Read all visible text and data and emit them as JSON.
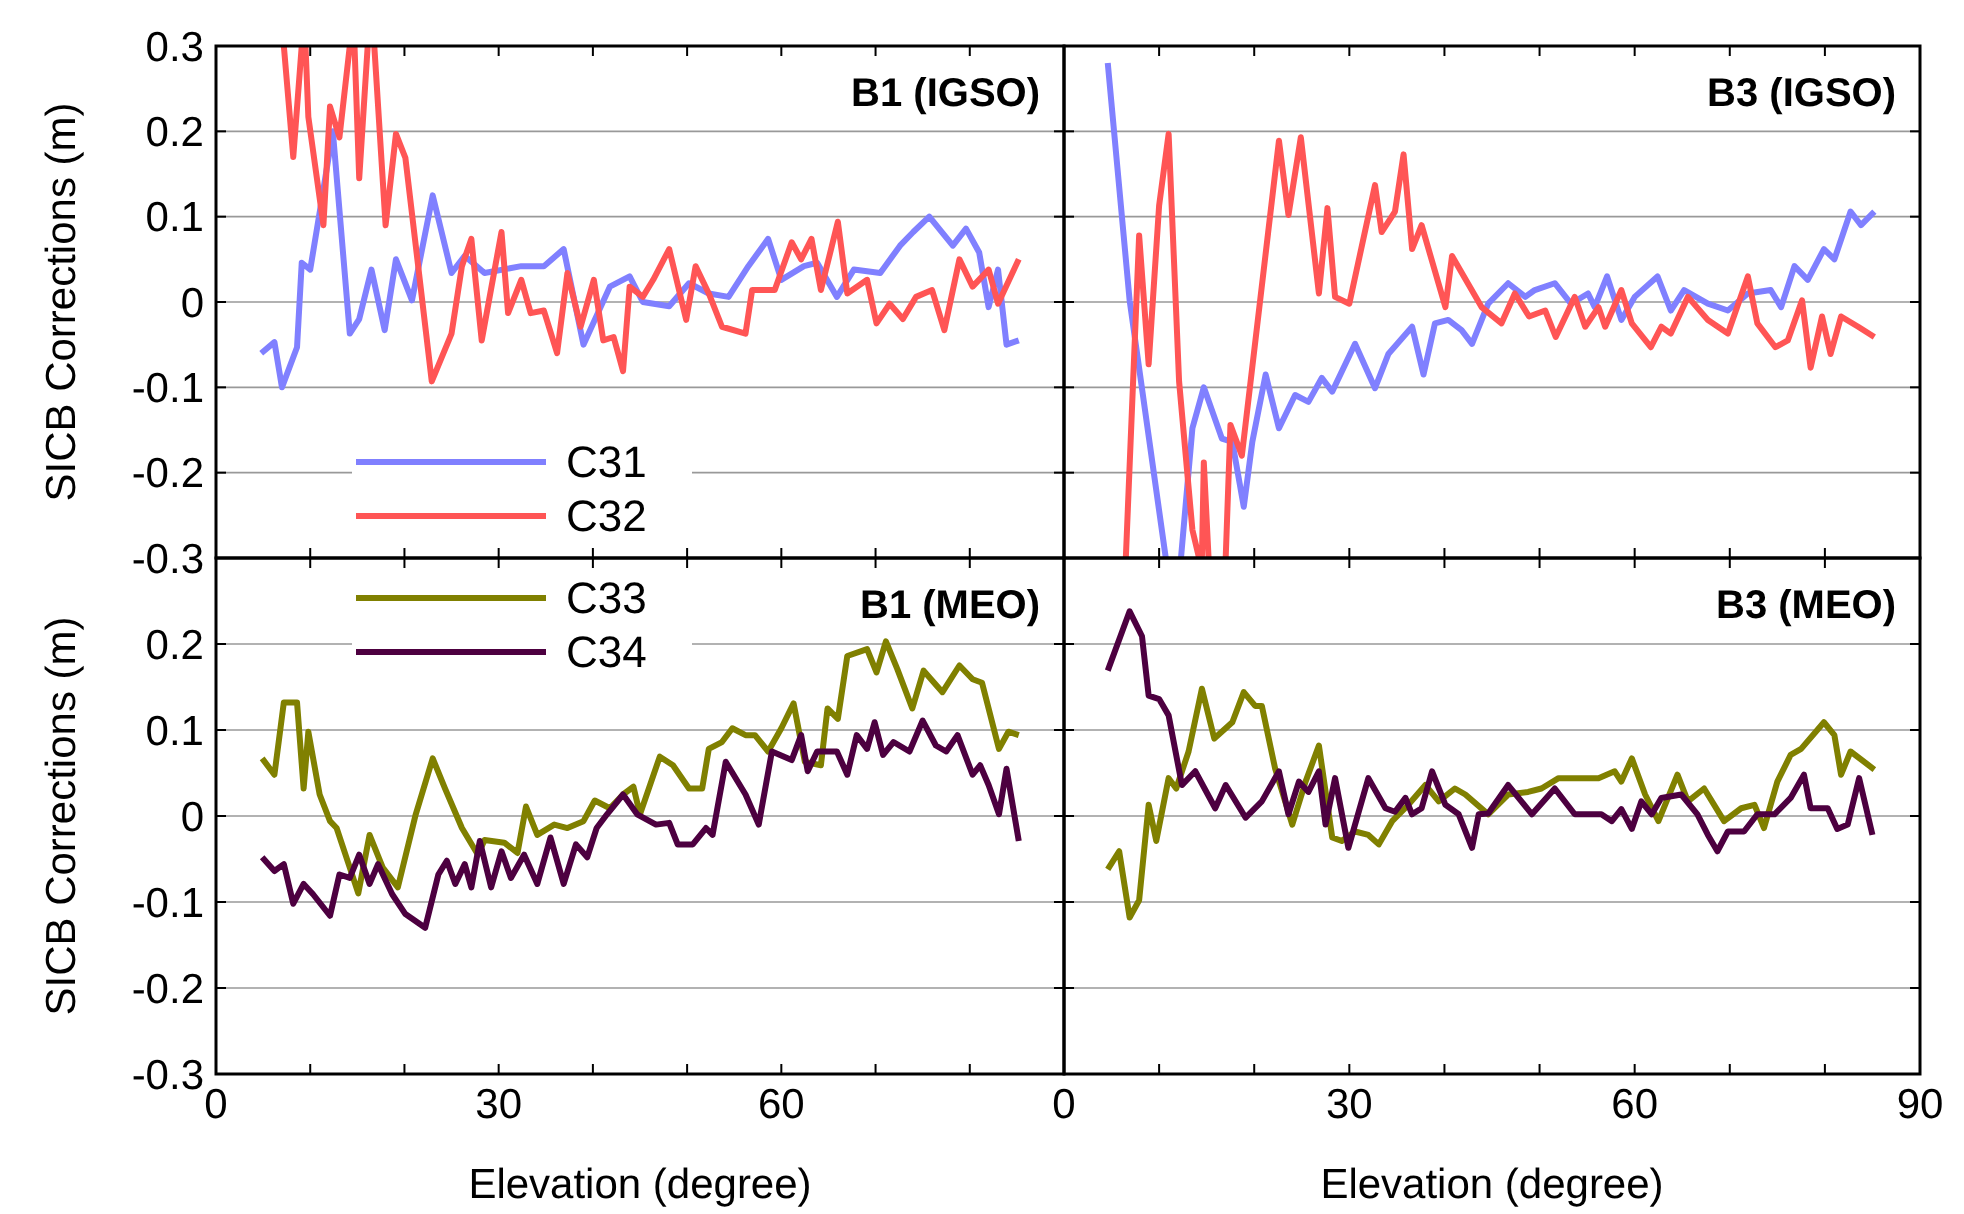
{
  "chart_data": [
    {
      "type": "line",
      "title": "B1 (IGSO)",
      "ylabel": "SICB Corrections (m)",
      "xlim": [
        0,
        90
      ],
      "ylim": [
        -0.3,
        0.3
      ],
      "xticks": [
        0,
        {
          "value": 10,
          "label": null
        },
        {
          "value": 20,
          "label": null
        },
        30,
        {
          "value": 40,
          "label": null
        },
        {
          "value": 50,
          "label": null
        },
        60,
        {
          "value": 70,
          "label": null
        },
        {
          "value": 80,
          "label": null
        },
        {
          "value": 90,
          "label": null
        }
      ],
      "yticks": [
        0.3,
        0.2,
        0.1,
        0,
        -0.1,
        -0.2,
        -0.3
      ],
      "grid": "y",
      "legend": "bottom left",
      "tick_labels": "y",
      "marker": "none",
      "line_style": "solid",
      "series": [
        {
          "name": "C31",
          "color": "#8080ff",
          "x": [
            4.8,
            6.2,
            7.0,
            8.6,
            9.1,
            10,
            11,
            12.4,
            14.2,
            15.2,
            16.5,
            17.9,
            19.1,
            20.8,
            23,
            25,
            26.4,
            28.5,
            32.4,
            34.8,
            36.9,
            39,
            41.8,
            43.9,
            45.3,
            48.1,
            50.2,
            52.3,
            54.4,
            56.5,
            58.6,
            60,
            62.4,
            63.8,
            65.9,
            67.7,
            70.5,
            72.6,
            74,
            75.7,
            78.2,
            79.6,
            81,
            82,
            83,
            83.9,
            85.2
          ],
          "values": [
            -0.06,
            -0.047,
            -0.1,
            -0.053,
            0.046,
            0.038,
            0.105,
            0.2,
            -0.037,
            -0.02,
            0.038,
            -0.033,
            0.05,
            0.002,
            0.125,
            0.034,
            0.054,
            0.034,
            0.042,
            0.042,
            0.062,
            -0.05,
            0.018,
            0.03,
            0,
            -0.005,
            0.022,
            0.01,
            0.006,
            0.042,
            0.074,
            0.026,
            0.042,
            0.046,
            0.006,
            0.038,
            0.034,
            0.066,
            0.082,
            0.1,
            0.066,
            0.086,
            0.058,
            -0.006,
            0.038,
            -0.05,
            -0.045
          ]
        },
        {
          "name": "C32",
          "color": "#ff5555",
          "x": [
            7.2,
            8.2,
            9.1,
            9.3,
            9.5,
            9.8,
            11.4,
            12.1,
            13.1,
            14.2,
            14.5,
            14.7,
            15.2,
            16.1,
            16.5,
            16.8,
            18,
            19.1,
            20.1,
            22.9,
            25,
            26.1,
            27.1,
            28.2,
            30.3,
            31,
            32.4,
            33.4,
            34.8,
            36.2,
            37.3,
            38.7,
            40.1,
            41.1,
            42.2,
            43.2,
            43.9,
            45.3,
            46.4,
            48.1,
            49.9,
            50.9,
            52.3,
            53.7,
            56.2,
            56.9,
            59.3,
            61.1,
            62.1,
            63.2,
            64.2,
            66,
            67,
            69.1,
            70.1,
            71.5,
            72.9,
            74.3,
            76,
            77.3,
            78.9,
            80.3,
            82,
            83,
            85.2
          ],
          "values": [
            0.3,
            0.17,
            0.3,
            null,
            0.3,
            0.217,
            0.09,
            0.229,
            0.193,
            0.3,
            null,
            0.3,
            0.145,
            0.3,
            null,
            0.3,
            0.09,
            0.197,
            0.169,
            -0.093,
            -0.037,
            0.042,
            0.074,
            -0.045,
            0.082,
            -0.013,
            0.026,
            -0.013,
            -0.01,
            -0.06,
            0.034,
            -0.029,
            0.026,
            -0.045,
            -0.041,
            -0.081,
            0.018,
            0.006,
            0.026,
            0.062,
            -0.021,
            0.042,
            0.01,
            -0.029,
            -0.037,
            0.014,
            0.014,
            0.07,
            0.05,
            0.074,
            0.014,
            0.094,
            0.01,
            0.026,
            -0.025,
            -0.002,
            -0.02,
            0.006,
            0.014,
            -0.033,
            0.05,
            0.018,
            0.038,
            -0.002,
            0.05
          ]
        }
      ]
    },
    {
      "type": "line",
      "title": "B3 (IGSO)",
      "xlim": [
        0,
        90
      ],
      "ylim": [
        -0.3,
        0.3
      ],
      "xticks": [
        0,
        {
          "value": 10,
          "label": null
        },
        {
          "value": 20,
          "label": null
        },
        30,
        {
          "value": 40,
          "label": null
        },
        {
          "value": 50,
          "label": null
        },
        60,
        {
          "value": 70,
          "label": null
        },
        {
          "value": 80,
          "label": null
        },
        90
      ],
      "yticks": [
        0.3,
        0.2,
        0.1,
        0,
        -0.1,
        -0.2,
        -0.3
      ],
      "grid": "y",
      "legend": false,
      "tick_labels": false,
      "marker": "none",
      "line_style": "solid",
      "series": [
        {
          "color": "#8080ff",
          "x": [
            4.6,
            6.9,
            10.7,
            11.5,
            12.3,
            13.5,
            14.7,
            16.6,
            17.7,
            18.9,
            19.8,
            21.2,
            22.6,
            24.3,
            25.7,
            27.1,
            28.2,
            30.6,
            32.7,
            34.1,
            36.6,
            37.8,
            39,
            40.4,
            41.8,
            42.9,
            44.6,
            46.7,
            48.5,
            49.5,
            51.6,
            53.3,
            55.1,
            55.8,
            57.1,
            58.6,
            60,
            62.4,
            63.8,
            65.2,
            67.7,
            69.8,
            71.9,
            74.3,
            75.4,
            76.8,
            78.2,
            79.9,
            81,
            82.7,
            83.8,
            85.2
          ],
          "values": [
            0.28,
            0.002,
            -0.3,
            null,
            -0.3,
            -0.148,
            -0.1,
            -0.16,
            -0.164,
            -0.24,
            -0.164,
            -0.085,
            -0.148,
            -0.109,
            -0.117,
            -0.089,
            -0.105,
            -0.049,
            -0.101,
            -0.061,
            -0.029,
            -0.085,
            -0.025,
            -0.021,
            -0.033,
            -0.049,
            -0.002,
            0.022,
            0.006,
            0.014,
            0.022,
            -0.002,
            0.01,
            -0.006,
            0.03,
            -0.021,
            0.006,
            0.03,
            -0.01,
            0.014,
            -0.002,
            -0.01,
            0.01,
            0.014,
            -0.006,
            0.042,
            0.026,
            0.062,
            0.05,
            0.106,
            0.09,
            0.106
          ]
        },
        {
          "color": "#ff5555",
          "x": [
            6.5,
            7.9,
            8.9,
            10,
            11,
            12.1,
            13.5,
            14.2,
            14.4,
            14.5,
            14.7,
            15.2,
            16,
            17,
            17.5,
            18.7,
            22.6,
            23.6,
            24.9,
            26.8,
            27.7,
            28.5,
            30,
            32.7,
            33.4,
            34.8,
            35.7,
            36.6,
            37.6,
            40.1,
            40.8,
            43.9,
            46,
            47.4,
            48.9,
            50.6,
            51.7,
            53.7,
            54.8,
            56.2,
            56.9,
            58.6,
            59.7,
            61.7,
            62.8,
            63.8,
            65.6,
            67.7,
            69.8,
            71.9,
            72.9,
            74.8,
            76.1,
            77.6,
            78.5,
            79.7,
            80.6,
            81.7,
            83.5,
            85.2
          ],
          "values": [
            -0.3,
            0.078,
            -0.073,
            0.113,
            0.197,
            -0.093,
            -0.267,
            -0.3,
            null,
            -0.3,
            -0.188,
            -0.3,
            null,
            -0.3,
            -0.144,
            -0.18,
            0.189,
            0.102,
            0.193,
            0.01,
            0.11,
            0.006,
            -0.002,
            0.137,
            0.082,
            0.106,
            0.173,
            0.062,
            0.09,
            -0.006,
            0.054,
            -0.006,
            -0.025,
            0.01,
            -0.017,
            -0.01,
            -0.041,
            0.006,
            -0.029,
            -0.006,
            -0.029,
            0.014,
            -0.025,
            -0.053,
            -0.029,
            -0.037,
            0.006,
            -0.021,
            -0.037,
            0.03,
            -0.025,
            -0.053,
            -0.045,
            0.002,
            -0.077,
            -0.017,
            -0.061,
            -0.017,
            -0.029,
            -0.041
          ]
        }
      ]
    },
    {
      "type": "line",
      "title": "B1 (MEO)",
      "ylabel": "SICB Corrections (m)",
      "xlabel": "Elevation (degree)",
      "xlim": [
        0,
        90
      ],
      "ylim": [
        -0.3,
        0.3
      ],
      "xticks": [
        0,
        {
          "value": 10,
          "label": null
        },
        {
          "value": 20,
          "label": null
        },
        30,
        {
          "value": 40,
          "label": null
        },
        {
          "value": 50,
          "label": null
        },
        60,
        {
          "value": 70,
          "label": null
        },
        {
          "value": 80,
          "label": null
        },
        {
          "value": 90,
          "label": null
        }
      ],
      "yticks": [
        {
          "value": 0.3,
          "label": null
        },
        0.2,
        0.1,
        0,
        -0.1,
        -0.2,
        -0.3
      ],
      "grid": "y",
      "legend": "top left",
      "marker": "none",
      "line_style": "solid",
      "series": [
        {
          "name": "C33",
          "color": "#808000",
          "x": [
            4.9,
            6.2,
            7.2,
            8.6,
            9.3,
            9.8,
            11,
            12.1,
            12.8,
            14.2,
            15.1,
            16.3,
            17.7,
            19.3,
            21.2,
            23,
            24.3,
            26.1,
            27.8,
            28.5,
            30.6,
            32,
            32.9,
            34.1,
            35.9,
            37.3,
            39,
            40.2,
            41.8,
            43.2,
            44.3,
            45,
            47.1,
            48.5,
            50.2,
            51.6,
            52.3,
            53.7,
            54.8,
            56.2,
            57.2,
            58.6,
            60,
            61.3,
            62.5,
            64.2,
            64.9,
            66,
            67,
            69.1,
            70.1,
            71.1,
            72.3,
            73.9,
            75.1,
            77.1,
            78.9,
            80.3,
            81.3,
            83.1,
            84.1,
            85.2
          ],
          "values": [
            0.067,
            0.048,
            0.132,
            0.132,
            0.032,
            0.098,
            0.025,
            -0.006,
            -0.014,
            -0.06,
            -0.09,
            -0.022,
            -0.06,
            -0.083,
            0.002,
            0.067,
            0.032,
            -0.014,
            -0.045,
            -0.028,
            -0.031,
            -0.043,
            0.011,
            -0.022,
            -0.01,
            -0.014,
            -0.006,
            0.018,
            0.009,
            0.025,
            0.034,
            0.002,
            0.069,
            0.059,
            0.032,
            0.032,
            0.078,
            0.086,
            0.102,
            0.094,
            0.094,
            0.075,
            0.102,
            0.131,
            0.063,
            0.059,
            0.125,
            0.113,
            0.186,
            0.194,
            0.167,
            0.203,
            0.171,
            0.125,
            0.169,
            0.144,
            0.175,
            0.159,
            0.155,
            0.078,
            0.098,
            0.094
          ]
        },
        {
          "name": "C34",
          "color": "#4d0040",
          "x": [
            4.9,
            6.2,
            7.2,
            8.2,
            9.3,
            10.3,
            12.1,
            13.1,
            14.2,
            15.2,
            16.3,
            17.2,
            18.7,
            20.1,
            22.2,
            23.6,
            24.5,
            25.4,
            26.4,
            27.1,
            28,
            29.2,
            30.3,
            31.3,
            32.7,
            34.1,
            35.5,
            36.9,
            38.2,
            39.4,
            40.4,
            41.5,
            43.2,
            44.7,
            46.7,
            48.1,
            49,
            50.6,
            52,
            52.7,
            54.1,
            56.2,
            57.6,
            59,
            61.1,
            62.1,
            62.8,
            63.8,
            65.9,
            67,
            68,
            69.1,
            69.9,
            70.8,
            71.9,
            73.6,
            75,
            76.4,
            77.5,
            78.7,
            80.3,
            81.1,
            82,
            83.1,
            83.9,
            85.2
          ],
          "values": [
            -0.048,
            -0.064,
            -0.056,
            -0.102,
            -0.079,
            -0.091,
            -0.116,
            -0.068,
            -0.072,
            -0.045,
            -0.079,
            -0.056,
            -0.091,
            -0.114,
            -0.13,
            -0.068,
            -0.052,
            -0.079,
            -0.056,
            -0.083,
            -0.029,
            -0.083,
            -0.041,
            -0.072,
            -0.045,
            -0.079,
            -0.025,
            -0.079,
            -0.033,
            -0.048,
            -0.014,
            0.002,
            0.025,
            0.002,
            -0.01,
            -0.008,
            -0.033,
            -0.033,
            -0.014,
            -0.022,
            0.063,
            0.025,
            -0.01,
            0.075,
            0.065,
            0.094,
            0.052,
            0.075,
            0.075,
            0.048,
            0.094,
            0.078,
            0.109,
            0.071,
            0.086,
            0.075,
            0.111,
            0.082,
            0.075,
            0.094,
            0.048,
            0.059,
            0.036,
            0.002,
            0.055,
            -0.029
          ]
        }
      ]
    },
    {
      "type": "line",
      "title": "B3 (MEO)",
      "xlabel": "Elevation (degree)",
      "xlim": [
        0,
        90
      ],
      "ylim": [
        -0.3,
        0.3
      ],
      "xticks": [
        0,
        {
          "value": 10,
          "label": null
        },
        {
          "value": 20,
          "label": null
        },
        30,
        {
          "value": 40,
          "label": null
        },
        {
          "value": 50,
          "label": null
        },
        60,
        {
          "value": 70,
          "label": null
        },
        {
          "value": 80,
          "label": null
        },
        90
      ],
      "yticks": [
        0.3,
        0.2,
        0.1,
        0,
        -0.1,
        -0.2,
        -0.3
      ],
      "grid": "y",
      "legend": false,
      "tick_labels": "x",
      "marker": "none",
      "line_style": "solid",
      "series": [
        {
          "color": "#808000",
          "x": [
            4.6,
            5.8,
            6.9,
            7.9,
            8.9,
            9.7,
            11,
            11.8,
            13.1,
            14.5,
            15.8,
            17.7,
            18.9,
            20.1,
            20.8,
            22.2,
            24,
            25.4,
            26.8,
            28.2,
            29.2,
            30.6,
            32,
            33.1,
            34.5,
            36.2,
            38,
            39.4,
            41.1,
            42.2,
            44.6,
            46.7,
            48.8,
            50.2,
            52,
            56.2,
            57.9,
            58.6,
            59.7,
            61.1,
            62.5,
            64.5,
            65.6,
            67.3,
            69.4,
            71.2,
            72.6,
            73.6,
            75,
            76.4,
            77.5,
            79.9,
            81,
            81.7,
            82.7,
            85.2
          ],
          "values": [
            -0.062,
            -0.041,
            -0.118,
            -0.098,
            0.013,
            -0.029,
            0.044,
            0.032,
            0.075,
            0.148,
            0.09,
            0.109,
            0.144,
            0.128,
            0.128,
            0.055,
            -0.01,
            0.04,
            0.082,
            -0.025,
            -0.029,
            -0.018,
            -0.022,
            -0.033,
            -0.006,
            0.013,
            0.036,
            0.017,
            0.032,
            0.025,
            0.002,
            0.025,
            0.028,
            0.032,
            0.044,
            0.044,
            0.052,
            0.04,
            0.067,
            0.025,
            -0.006,
            0.048,
            0.017,
            0.032,
            -0.006,
            0.009,
            0.013,
            -0.014,
            0.04,
            0.071,
            0.078,
            0.109,
            0.094,
            0.048,
            0.075,
            0.054
          ]
        },
        {
          "color": "#4d0040",
          "x": [
            4.6,
            6.9,
            8.2,
            8.9,
            10,
            11,
            12.4,
            13.8,
            15.9,
            17,
            19.1,
            20.8,
            22.6,
            23.6,
            24.7,
            25.7,
            26.8,
            27.5,
            28.5,
            29.9,
            32,
            33.8,
            34.8,
            35.9,
            36.6,
            37.6,
            38.7,
            40.1,
            41.5,
            42.9,
            43.6,
            44.6,
            46.7,
            49.2,
            51.6,
            53.7,
            56.5,
            57.6,
            58.6,
            59.7,
            60.7,
            61.8,
            62.8,
            64.9,
            66.6,
            67.7,
            68.7,
            69.8,
            71.5,
            72.9,
            74.7,
            76.4,
            77.8,
            78.5,
            80.3,
            81.3,
            82.4,
            83.6,
            85
          ],
          "values": [
            0.169,
            0.238,
            0.209,
            0.14,
            0.136,
            0.117,
            0.036,
            0.052,
            0.009,
            0.036,
            -0.002,
            0.017,
            0.052,
            0.002,
            0.04,
            0.028,
            0.052,
            -0.01,
            0.044,
            -0.037,
            0.044,
            0.009,
            0.005,
            0.021,
            0.002,
            0.009,
            0.052,
            0.013,
            0.002,
            -0.037,
            0.002,
            0.003,
            0.036,
            0.002,
            0.032,
            0.002,
            0.002,
            -0.006,
            0.008,
            -0.015,
            0.017,
            0.002,
            0.021,
            0.025,
            0.002,
            -0.022,
            -0.041,
            -0.018,
            -0.018,
            0.002,
            0.002,
            0.021,
            0.048,
            0.009,
            0.009,
            -0.015,
            -0.01,
            0.044,
            -0.022
          ]
        }
      ]
    }
  ]
}
